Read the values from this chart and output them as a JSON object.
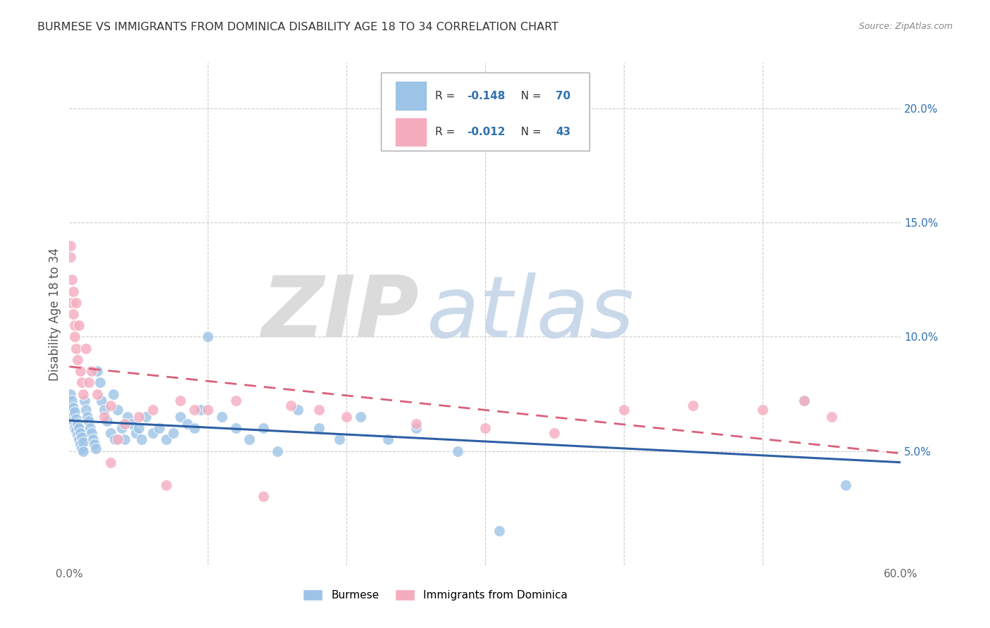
{
  "title": "BURMESE VS IMMIGRANTS FROM DOMINICA DISABILITY AGE 18 TO 34 CORRELATION CHART",
  "source": "Source: ZipAtlas.com",
  "ylabel": "Disability Age 18 to 34",
  "watermark_zip": "ZIP",
  "watermark_atlas": "atlas",
  "xlim": [
    0.0,
    0.6
  ],
  "ylim": [
    0.0,
    0.22
  ],
  "yticks_right": [
    0.05,
    0.1,
    0.15,
    0.2
  ],
  "yticklabels_right": [
    "5.0%",
    "10.0%",
    "15.0%",
    "20.0%"
  ],
  "blue_color": "#9dc3e6",
  "pink_color": "#f4acbe",
  "trend_blue": "#2e5fa3",
  "trend_pink": "#d9607a",
  "burmese_x": [
    0.001,
    0.001,
    0.002,
    0.002,
    0.003,
    0.003,
    0.004,
    0.004,
    0.005,
    0.005,
    0.006,
    0.006,
    0.007,
    0.007,
    0.008,
    0.008,
    0.009,
    0.009,
    0.01,
    0.01,
    0.011,
    0.012,
    0.013,
    0.014,
    0.015,
    0.016,
    0.017,
    0.018,
    0.019,
    0.02,
    0.022,
    0.023,
    0.025,
    0.027,
    0.03,
    0.032,
    0.033,
    0.035,
    0.038,
    0.04,
    0.042,
    0.045,
    0.048,
    0.05,
    0.052,
    0.055,
    0.06,
    0.065,
    0.07,
    0.075,
    0.08,
    0.085,
    0.09,
    0.095,
    0.1,
    0.11,
    0.12,
    0.13,
    0.14,
    0.15,
    0.165,
    0.18,
    0.195,
    0.21,
    0.23,
    0.25,
    0.28,
    0.31,
    0.53,
    0.56
  ],
  "burmese_y": [
    0.075,
    0.068,
    0.072,
    0.065,
    0.069,
    0.063,
    0.067,
    0.06,
    0.064,
    0.059,
    0.062,
    0.057,
    0.06,
    0.055,
    0.058,
    0.053,
    0.056,
    0.051,
    0.054,
    0.05,
    0.072,
    0.068,
    0.065,
    0.063,
    0.06,
    0.058,
    0.055,
    0.053,
    0.051,
    0.085,
    0.08,
    0.072,
    0.068,
    0.063,
    0.058,
    0.075,
    0.055,
    0.068,
    0.06,
    0.055,
    0.065,
    0.062,
    0.058,
    0.06,
    0.055,
    0.065,
    0.058,
    0.06,
    0.055,
    0.058,
    0.065,
    0.062,
    0.06,
    0.068,
    0.1,
    0.065,
    0.06,
    0.055,
    0.06,
    0.05,
    0.068,
    0.06,
    0.055,
    0.065,
    0.055,
    0.06,
    0.05,
    0.015,
    0.072,
    0.035
  ],
  "dominica_x": [
    0.001,
    0.001,
    0.002,
    0.002,
    0.003,
    0.003,
    0.004,
    0.004,
    0.005,
    0.005,
    0.006,
    0.007,
    0.008,
    0.009,
    0.01,
    0.012,
    0.014,
    0.016,
    0.02,
    0.025,
    0.03,
    0.035,
    0.04,
    0.06,
    0.08,
    0.1,
    0.12,
    0.14,
    0.16,
    0.18,
    0.2,
    0.25,
    0.3,
    0.35,
    0.4,
    0.45,
    0.5,
    0.53,
    0.55,
    0.03,
    0.05,
    0.07,
    0.09
  ],
  "dominica_y": [
    0.14,
    0.135,
    0.125,
    0.115,
    0.12,
    0.11,
    0.105,
    0.1,
    0.095,
    0.115,
    0.09,
    0.105,
    0.085,
    0.08,
    0.075,
    0.095,
    0.08,
    0.085,
    0.075,
    0.065,
    0.07,
    0.055,
    0.062,
    0.068,
    0.072,
    0.068,
    0.072,
    0.03,
    0.07,
    0.068,
    0.065,
    0.062,
    0.06,
    0.058,
    0.068,
    0.07,
    0.068,
    0.072,
    0.065,
    0.045,
    0.065,
    0.035,
    0.068
  ]
}
